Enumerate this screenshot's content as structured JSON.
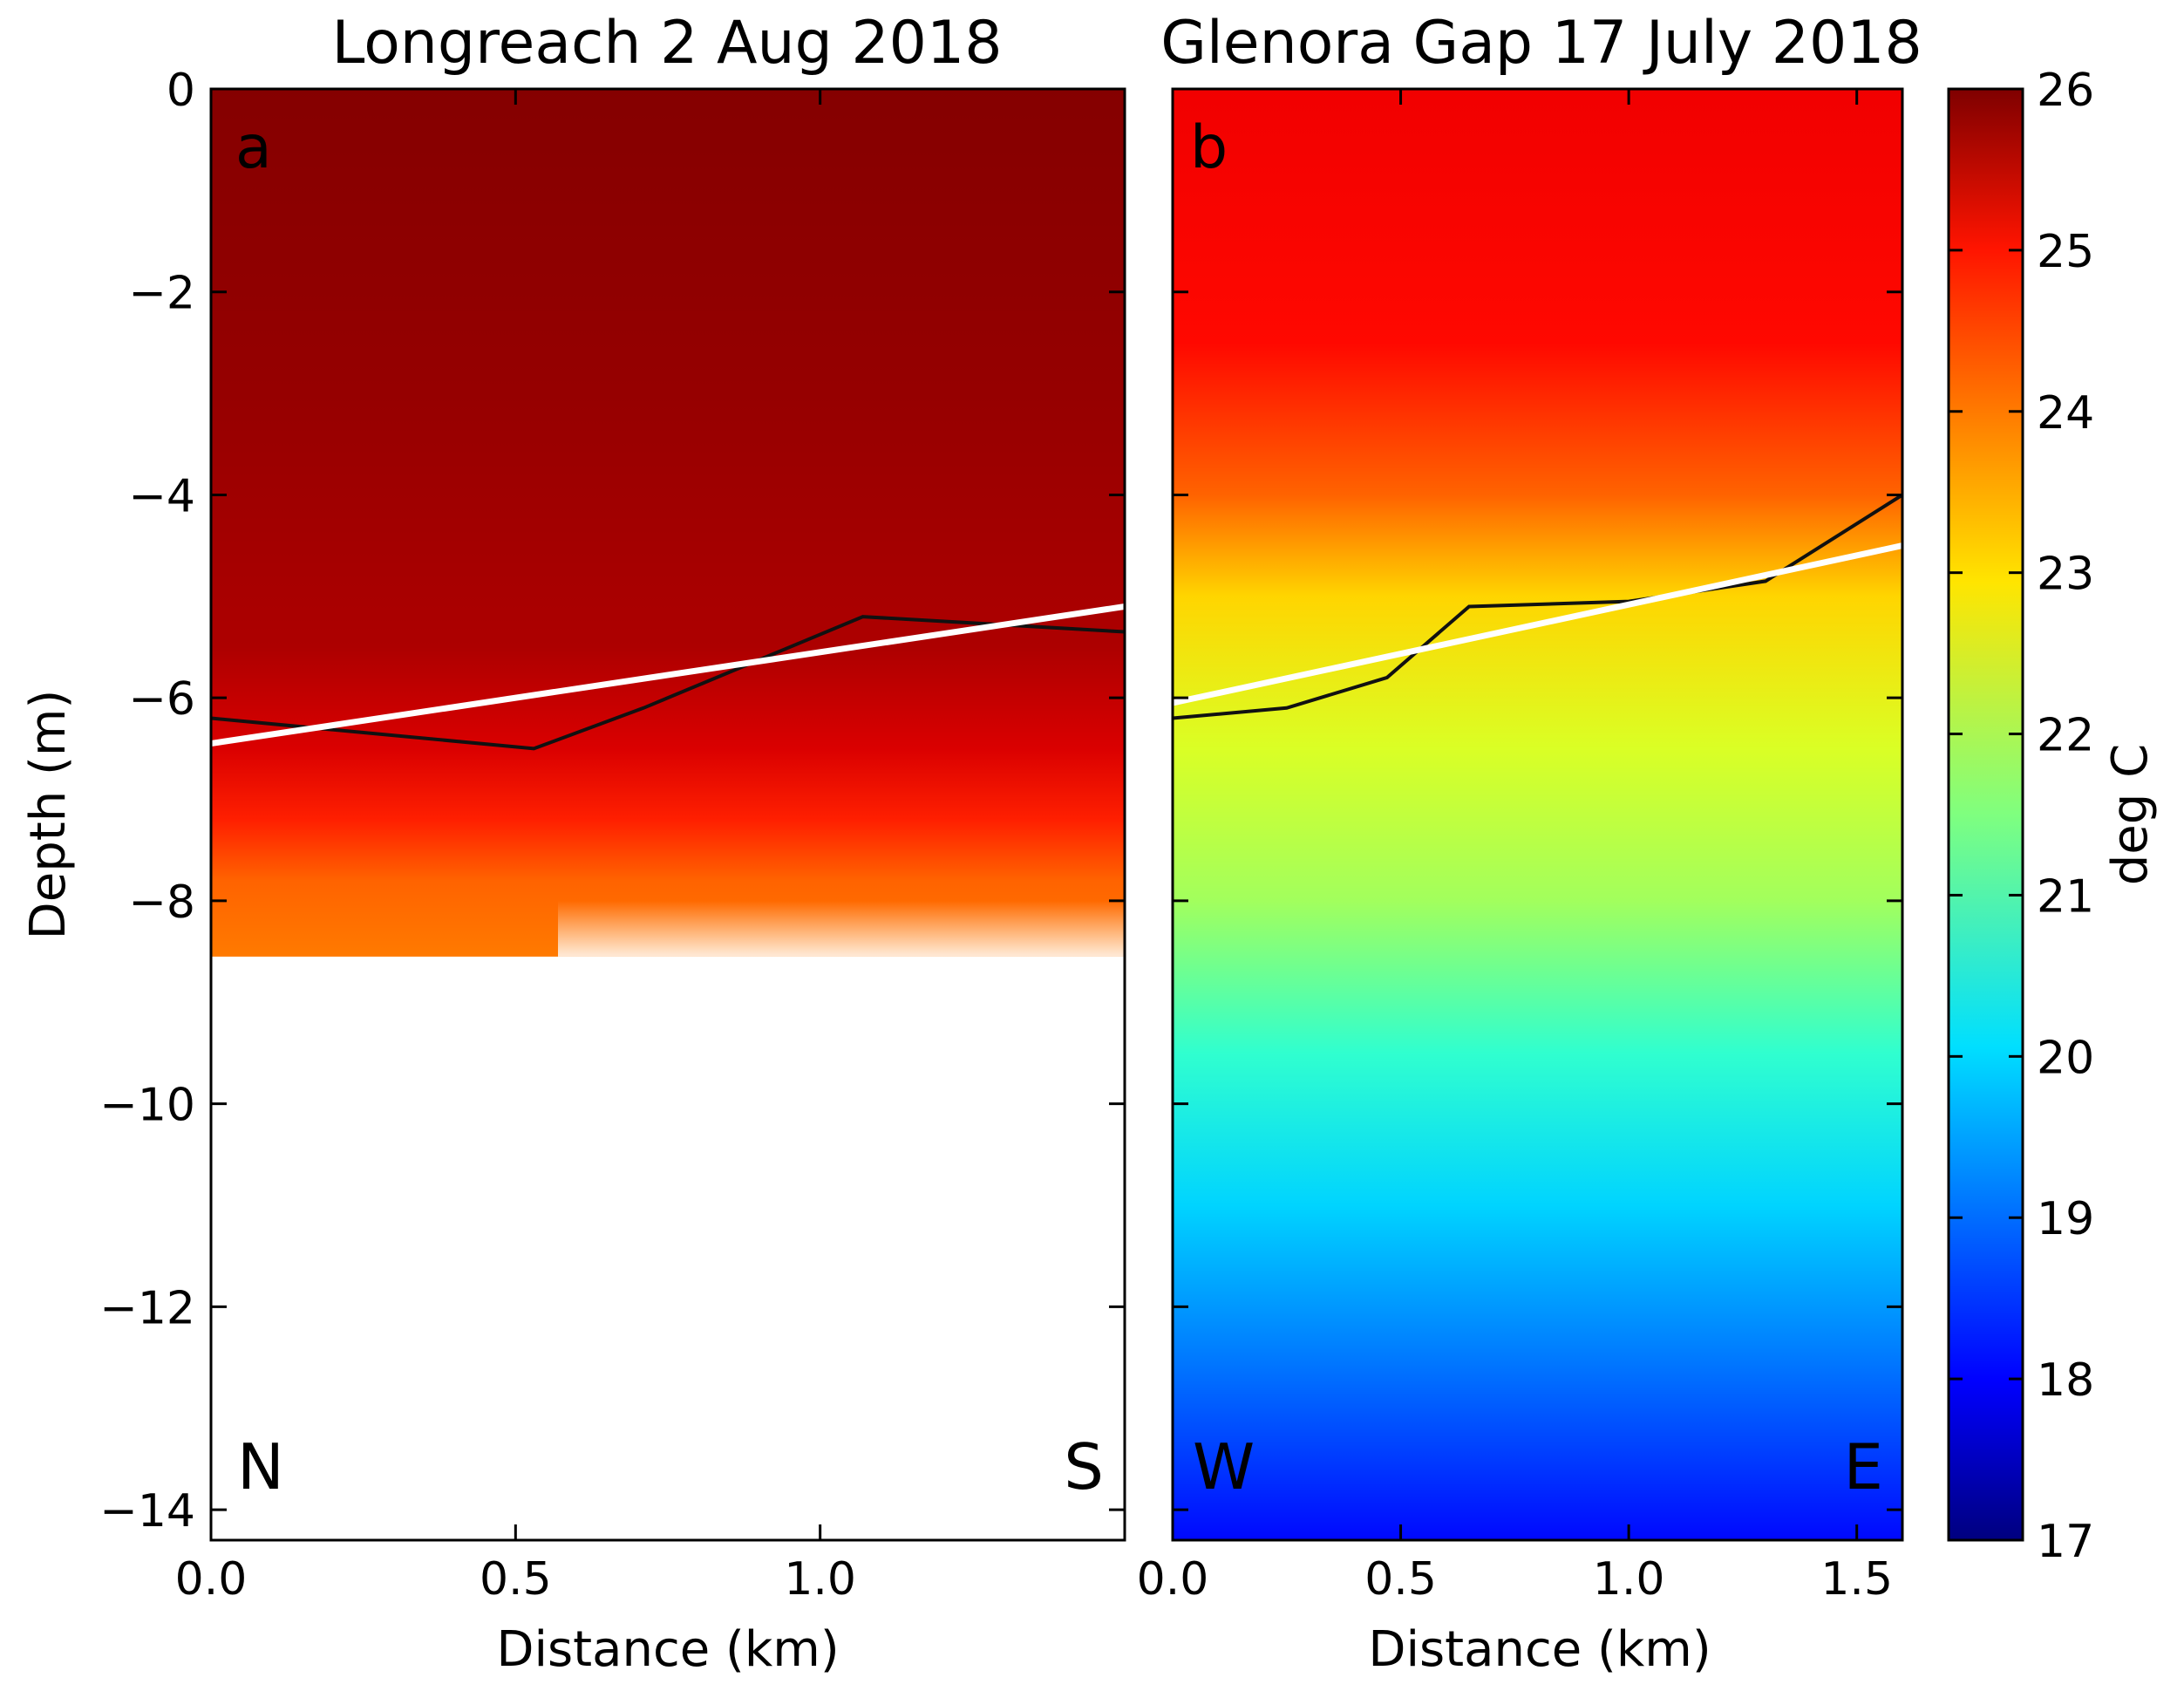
{
  "chart_data": [
    {
      "type": "heatmap",
      "title": "Longreach 2 Aug 2018",
      "panel_label": "a",
      "xlabel": "Distance (km)",
      "ylabel": "Depth (m)",
      "xlim": [
        0,
        1.5
      ],
      "ylim": [
        -14.3,
        0
      ],
      "xticks": [
        "0.0",
        "0.5",
        "1.0"
      ],
      "yticks": [
        "0",
        "−2",
        "−4",
        "−6",
        "−8",
        "−10",
        "−12",
        "−14"
      ],
      "ytick_values": [
        0,
        -2,
        -4,
        -6,
        -8,
        -10,
        -12,
        -14
      ],
      "xtick_values": [
        0,
        0.5,
        1.0
      ],
      "corner_left": "N",
      "corner_right": "S",
      "data_bottom_depth": -8.55,
      "temperature_profile": [
        {
          "depth": 0,
          "temp": 25.95
        },
        {
          "depth": -3,
          "temp": 25.8
        },
        {
          "depth": -5.5,
          "temp": 25.6
        },
        {
          "depth": -6.5,
          "temp": 25.2
        },
        {
          "depth": -7.2,
          "temp": 24.6
        },
        {
          "depth": -7.8,
          "temp": 24.0
        },
        {
          "depth": -8.55,
          "temp": 23.8
        }
      ],
      "black_line": {
        "x": [
          0,
          0.53,
          0.71,
          1.07,
          1.5
        ],
        "depth": [
          -6.2,
          -6.5,
          -6.1,
          -5.2,
          -5.35
        ]
      },
      "white_line": {
        "x": [
          0,
          1.5
        ],
        "depth": [
          -6.45,
          -5.1
        ]
      }
    },
    {
      "type": "heatmap",
      "title": "Glenora Gap 17 July 2018",
      "panel_label": "b",
      "xlabel": "Distance (km)",
      "ylabel": "",
      "xlim": [
        0,
        1.6
      ],
      "ylim": [
        -14.3,
        0
      ],
      "xticks": [
        "0.0",
        "0.5",
        "1.0",
        "1.5"
      ],
      "xtick_values": [
        0,
        0.5,
        1.0,
        1.5
      ],
      "corner_left": "W",
      "corner_right": "E",
      "temperature_profile": [
        {
          "depth": 0,
          "temp": 25.0
        },
        {
          "depth": -2.5,
          "temp": 24.8
        },
        {
          "depth": -4,
          "temp": 24.0
        },
        {
          "depth": -5,
          "temp": 23.0
        },
        {
          "depth": -6.5,
          "temp": 22.3
        },
        {
          "depth": -8,
          "temp": 21.8
        },
        {
          "depth": -9.5,
          "temp": 20.8
        },
        {
          "depth": -11,
          "temp": 20.0
        },
        {
          "depth": -12.5,
          "temp": 19.2
        },
        {
          "depth": -14.3,
          "temp": 18.2
        }
      ],
      "black_line": {
        "x": [
          0,
          0.25,
          0.47,
          0.65,
          1.0,
          1.3,
          1.6
        ],
        "depth": [
          -6.2,
          -6.1,
          -5.8,
          -5.1,
          -5.05,
          -4.85,
          -4.0
        ]
      },
      "white_line": {
        "x": [
          0,
          1.6
        ],
        "depth": [
          -6.05,
          -4.5
        ]
      }
    }
  ],
  "colorbar": {
    "label": "deg C",
    "min": 17,
    "max": 26,
    "ticks": [
      "26",
      "25",
      "24",
      "23",
      "22",
      "21",
      "20",
      "19",
      "18",
      "17"
    ],
    "tick_values": [
      26,
      25,
      24,
      23,
      22,
      21,
      20,
      19,
      18,
      17
    ]
  }
}
